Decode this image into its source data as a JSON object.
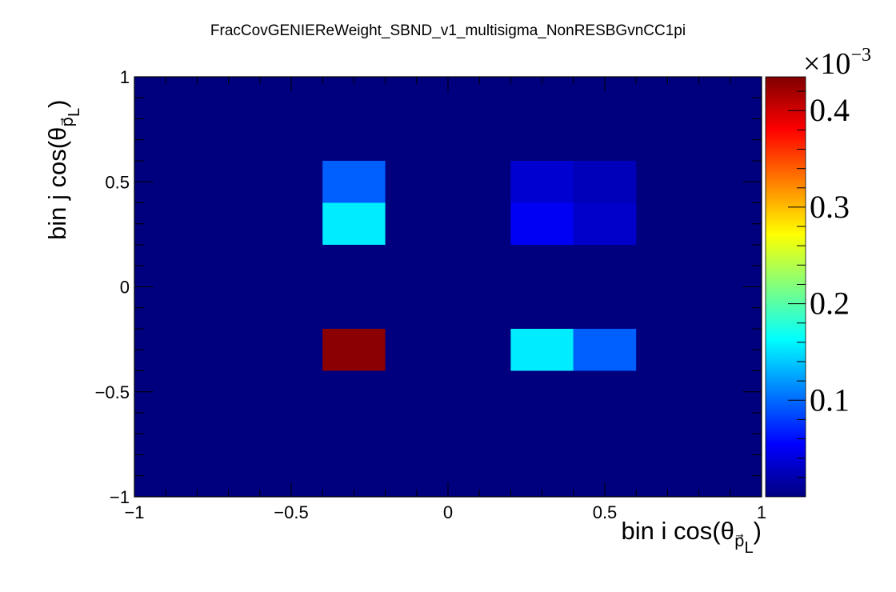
{
  "chart_data": {
    "type": "heatmap",
    "title": "FracCovGENIEReWeight_SBND_v1_multisigma_NonRESBGvnCC1pi",
    "xlabel": {
      "main": "bin i cos(θ",
      "sub": "p⃗",
      "subsub": "L",
      "close": ")"
    },
    "ylabel": {
      "main": "bin j cos(θ",
      "sub": "p⃗",
      "subsub": "L",
      "close": ")"
    },
    "xlim": [
      -1,
      1
    ],
    "ylim": [
      -1,
      1
    ],
    "x_bin_edges": [
      -1,
      -0.8,
      -0.6,
      -0.4,
      -0.2,
      0,
      0.2,
      0.4,
      0.6,
      0.8,
      1
    ],
    "y_bin_edges": [
      -1,
      -0.8,
      -0.6,
      -0.4,
      -0.2,
      0,
      0.2,
      0.4,
      0.6,
      0.8,
      1
    ],
    "x_ticks": [
      -1,
      -0.5,
      0,
      0.5,
      1
    ],
    "x_tick_labels": [
      "−1",
      "−0.5",
      "0",
      "0.5",
      "1"
    ],
    "y_ticks": [
      -1,
      -0.5,
      0,
      0.5,
      1
    ],
    "y_tick_labels": [
      "−1",
      "−0.5",
      "0",
      "0.5",
      "1"
    ],
    "background_value": 0,
    "cells": [
      {
        "x": [
          -0.4,
          -0.2
        ],
        "y": [
          0.4,
          0.6
        ],
        "value": 9.5e-05
      },
      {
        "x": [
          -0.4,
          -0.2
        ],
        "y": [
          0.2,
          0.4
        ],
        "value": 0.000155
      },
      {
        "x": [
          0.2,
          0.4
        ],
        "y": [
          0.4,
          0.6
        ],
        "value": 3.5e-05
      },
      {
        "x": [
          0.4,
          0.6
        ],
        "y": [
          0.4,
          0.6
        ],
        "value": 2.5e-05
      },
      {
        "x": [
          0.2,
          0.4
        ],
        "y": [
          0.2,
          0.4
        ],
        "value": 5e-05
      },
      {
        "x": [
          0.4,
          0.6
        ],
        "y": [
          0.2,
          0.4
        ],
        "value": 3.2e-05
      },
      {
        "x": [
          -0.4,
          -0.2
        ],
        "y": [
          -0.4,
          -0.2
        ],
        "value": 0.00043
      },
      {
        "x": [
          0.2,
          0.4
        ],
        "y": [
          -0.4,
          -0.2
        ],
        "value": 0.000155
      },
      {
        "x": [
          0.4,
          0.6
        ],
        "y": [
          -0.4,
          -0.2
        ],
        "value": 9.5e-05
      }
    ],
    "colorbar": {
      "range": [
        0,
        0.000435
      ],
      "exponent_base": "×10",
      "exponent_power": "−3",
      "ticks": [
        0.0001,
        0.0002,
        0.0003,
        0.0004
      ],
      "tick_labels": [
        "0.1",
        "0.2",
        "0.3",
        "0.4"
      ],
      "palette": "kBird",
      "stops": [
        "#00007f",
        "#0000ff",
        "#007fff",
        "#00ffff",
        "#7fff7f",
        "#ffff00",
        "#ff7f00",
        "#ff0000",
        "#7f0000"
      ]
    }
  }
}
